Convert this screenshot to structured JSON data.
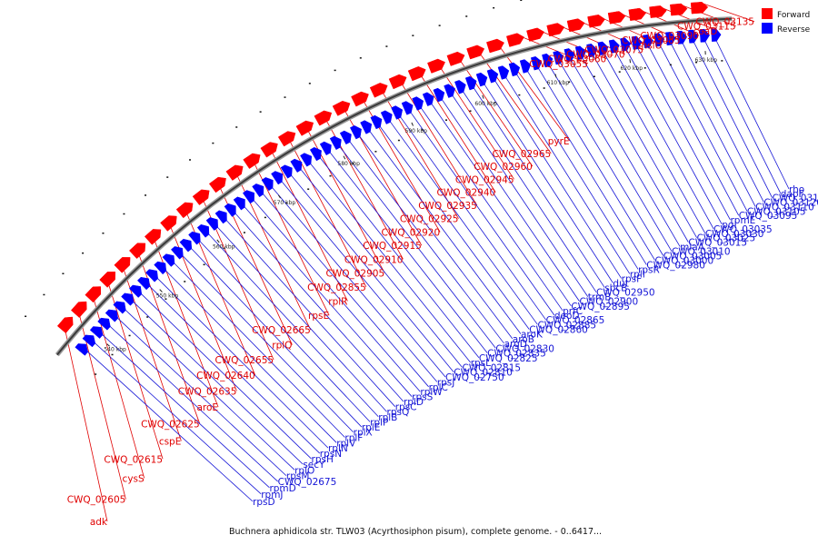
{
  "caption": "Buchnera aphidicola str. TLW03 (Acyrthosiphon pisum), complete genome. - 0..6417...",
  "legend": {
    "forward_label": "Forward",
    "reverse_label": "Reverse",
    "forward_color": "#ff0000",
    "reverse_color": "#0000ff"
  },
  "ticks": [
    "540 kbp",
    "550 kbp",
    "560 kbp",
    "570 kbp",
    "580 kbp",
    "590 kbp",
    "600 kbp",
    "610 kbp",
    "620 kbp",
    "630 kbp"
  ],
  "forward_genes": [
    "adk",
    "CWQ_02605",
    "cysS",
    "CWQ_02615",
    "cspE",
    "CWQ_02625",
    "aroE",
    "CWQ_02635",
    "CWQ_02640",
    "CWQ_02655",
    "rplQ",
    "CWQ_02665",
    "rpsE",
    "rplR",
    "CWQ_02855",
    "CWQ_02905",
    "CWQ_02910",
    "CWQ_02915",
    "CWQ_02920",
    "CWQ_02925",
    "CWQ_02935",
    "CWQ_02940",
    "CWQ_02945",
    "CWQ_02960",
    "CWQ_02965",
    "pyrE",
    "CWQ_03055",
    "CWQ_03060",
    "CWQ_03070",
    "CWQ_03075",
    "hslU",
    "CWQ_03085",
    "CWQ_03090",
    "coaD",
    "CWQ_03115",
    "CWQ_03135"
  ],
  "reverse_genes": [
    "rpsD",
    "rpmJ",
    "rpmD",
    "CWQ_02675",
    "rpsM",
    "rplO",
    "secY",
    "rpsH",
    "rpsN",
    "rplN",
    "rplV",
    "rplF",
    "rplX",
    "rplE",
    "rplP",
    "rplB",
    "rpsQ",
    "rpsC",
    "rplD",
    "rpsS",
    "rplW",
    "rplC",
    "rpsJ",
    "CWQ_02750",
    "CWQ_02810",
    "CWQ_02815",
    "rpsL",
    "CWQ_02825",
    "CWQ_02835",
    "CWQ_02830",
    "argD",
    "aroB",
    "aroK",
    "CWQ_02860",
    "CWQ_02885",
    "CWQ_02865",
    "deoD",
    "prfC",
    "CWQ_02895",
    "CWQ_02900",
    "trmB",
    "CWQ_02950",
    "sbcB",
    "dut",
    "rpsF",
    "rplI",
    "rpsR",
    "CWQ_02980",
    "CWQ_03000",
    "CWQ_03005",
    "CWQ_03010",
    "miaA",
    "CWQ_03015",
    "CWQ_03025",
    "CWQ_03030",
    "CWQ_03035",
    "pgi",
    "rpmE",
    "CWQ_03095",
    "CWQ_03105",
    "CWQ_03110",
    "CWQ_03120",
    "CWQ_03125",
    "dapF",
    "rho"
  ]
}
